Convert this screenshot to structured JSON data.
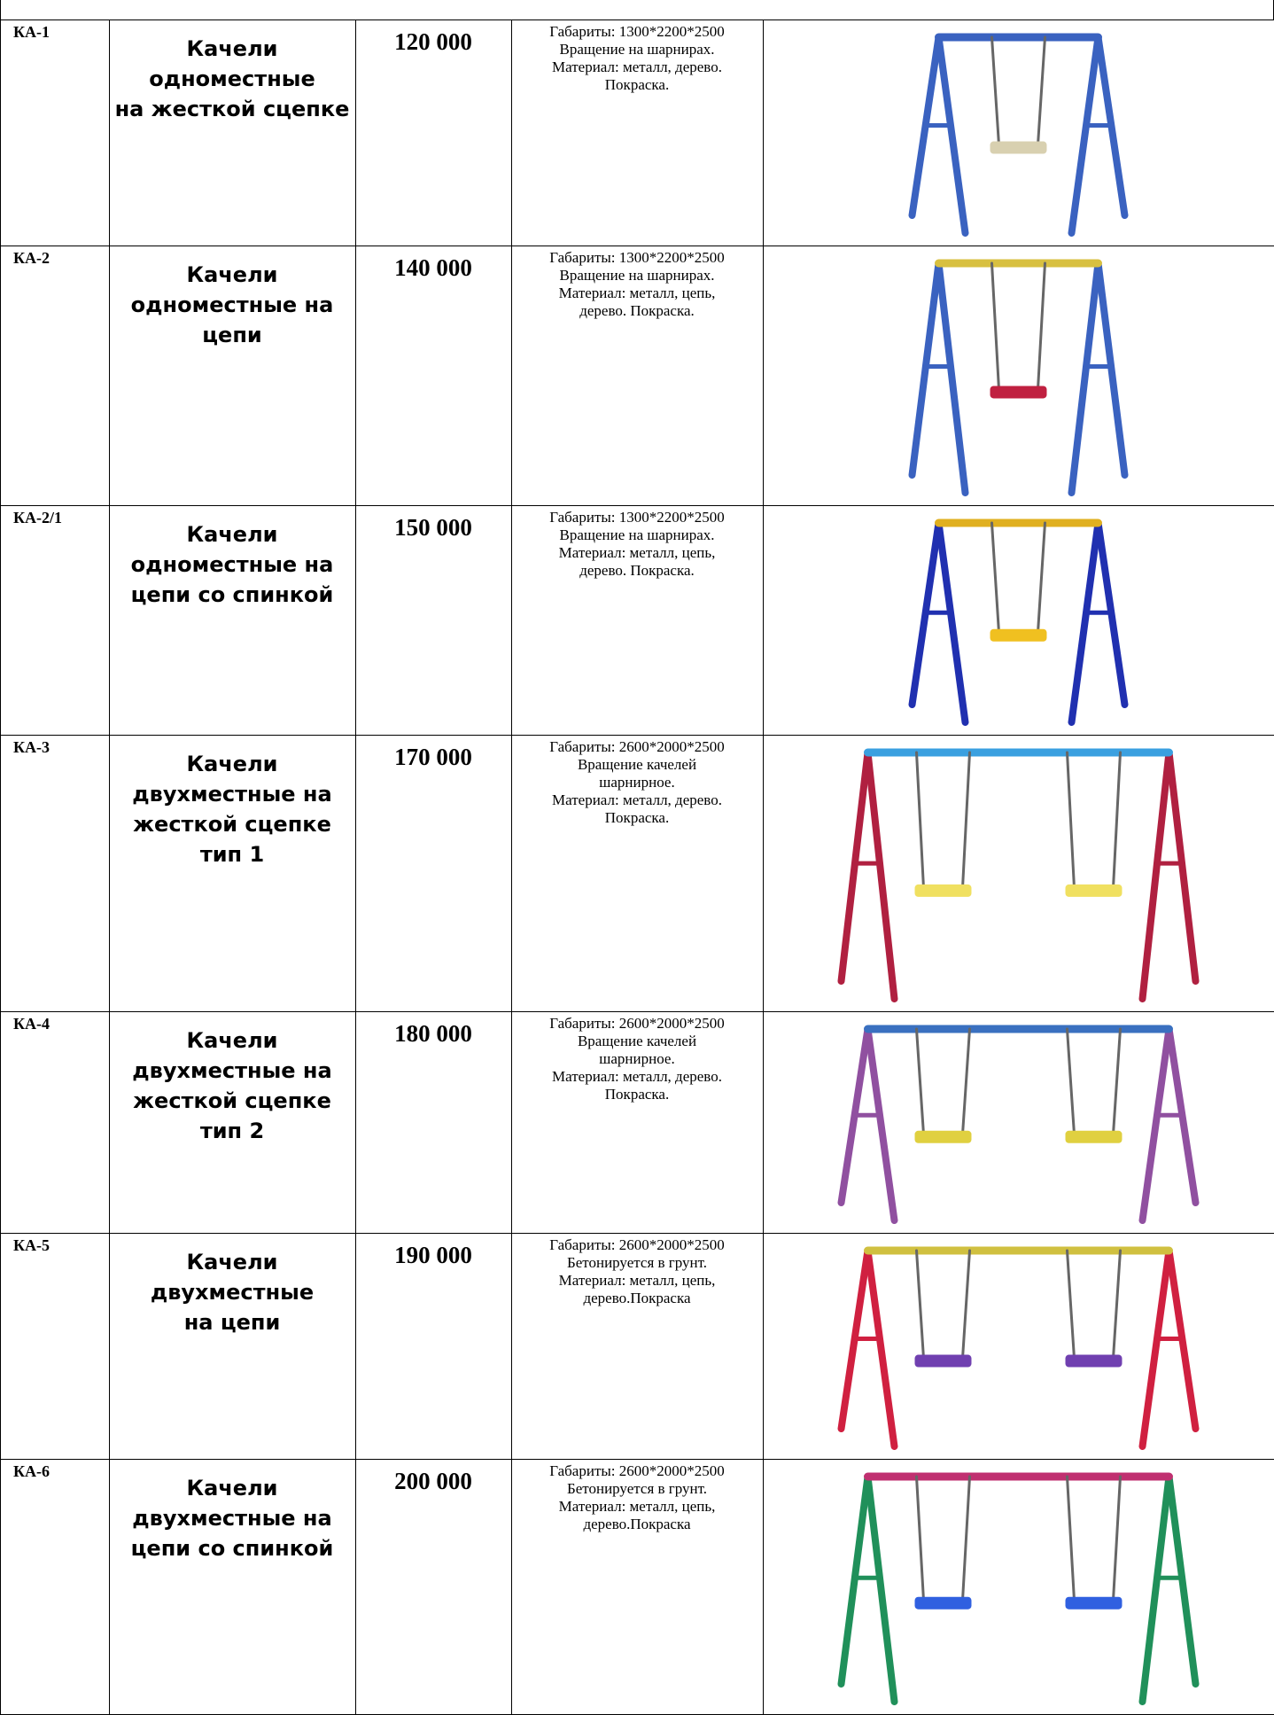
{
  "table": {
    "rows": [
      {
        "code": "КА-1",
        "name": [
          "Качели",
          "одноместные",
          "на жесткой сцепке"
        ],
        "price": "120 000",
        "description": [
          "Габариты: 1300*2200*2500",
          "Вращение на шарнирах.",
          "Материал: металл, дерево.",
          "Покраска."
        ]
      },
      {
        "code": "КА-2",
        "name": [
          "Качели",
          "одноместные на",
          "цепи"
        ],
        "price": "140 000",
        "description": [
          "Габариты: 1300*2200*2500",
          "Вращение на шарнирах.",
          "Материал: металл, цепь,",
          "дерево. Покраска."
        ]
      },
      {
        "code": "КА-2/1",
        "name": [
          "Качели",
          "одноместные на",
          "цепи со спинкой"
        ],
        "price": "150 000",
        "description": [
          "Габариты: 1300*2200*2500",
          "Вращение на шарнирах.",
          "Материал: металл, цепь,",
          "дерево. Покраска."
        ]
      },
      {
        "code": "КА-3",
        "name": [
          "Качели",
          "двухместные на",
          "жесткой сцепке",
          "тип 1"
        ],
        "price": "170 000",
        "description": [
          "Габариты: 2600*2000*2500",
          "Вращение качелей",
          "шарнирное.",
          "Материал: металл,  дерево.",
          "Покраска."
        ]
      },
      {
        "code": "КА-4",
        "name": [
          "Качели",
          "двухместные на",
          "жесткой сцепке",
          "тип 2"
        ],
        "price": "180 000",
        "description": [
          "Габариты: 2600*2000*2500",
          "Вращение качелей",
          "шарнирное.",
          "Материал: металл,  дерево.",
          "Покраска."
        ]
      },
      {
        "code": "КА-5",
        "name": [
          "Качели",
          "двухместные",
          "на цепи"
        ],
        "price": "190 000",
        "description": [
          "Габариты: 2600*2000*2500",
          "Бетонируется в грунт.",
          "Материал: металл, цепь,",
          "дерево.Покраска"
        ]
      },
      {
        "code": "КА-6",
        "name": [
          "Качели",
          "двухместные на",
          "цепи со спинкой"
        ],
        "price": "200 000",
        "description": [
          "Габариты: 2600*2000*2500",
          "Бетонируется в грунт.",
          "Материал: металл, цепь,",
          "дерево.Покраска"
        ]
      }
    ]
  }
}
